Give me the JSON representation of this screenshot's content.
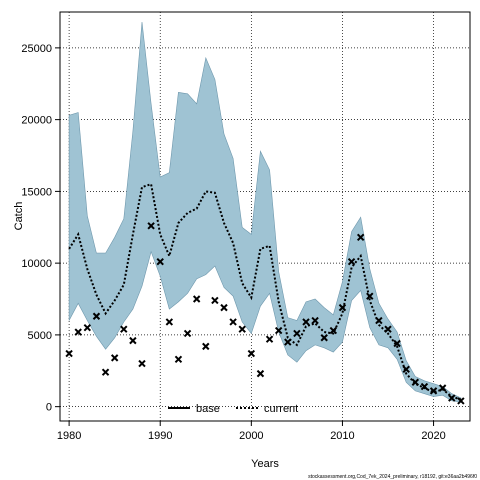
{
  "chart_data": {
    "type": "line",
    "xlabel": "Years",
    "ylabel": "Catch",
    "xlim": [
      1979,
      2024
    ],
    "ylim": [
      -1000,
      27500
    ],
    "x_ticks": [
      1980,
      1990,
      2000,
      2010,
      2020
    ],
    "y_ticks": [
      0,
      5000,
      10000,
      15000,
      20000,
      25000
    ],
    "grid": true,
    "legend_position": "bottom",
    "colors": {
      "band": "#9fc3d3",
      "band_edge": "#6f98ad",
      "line": "#000000",
      "points": "#000000"
    },
    "legend": [
      {
        "label": "base",
        "style": "solid"
      },
      {
        "label": "current",
        "style": "dotted"
      }
    ],
    "x": [
      1980,
      1981,
      1982,
      1983,
      1984,
      1985,
      1986,
      1987,
      1988,
      1989,
      1990,
      1991,
      1992,
      1993,
      1994,
      1995,
      1996,
      1997,
      1998,
      1999,
      2000,
      2001,
      2002,
      2003,
      2004,
      2005,
      2006,
      2007,
      2008,
      2009,
      2010,
      2011,
      2012,
      2013,
      2014,
      2015,
      2016,
      2017,
      2018,
      2019,
      2020,
      2021,
      2022,
      2023
    ],
    "observed": [
      3700,
      5200,
      5500,
      6300,
      2400,
      3400,
      5400,
      4600,
      3000,
      12600,
      10100,
      5900,
      3300,
      5100,
      7500,
      4200,
      7400,
      6900,
      5900,
      5400,
      3700,
      2300,
      4700,
      5300,
      4500,
      5100,
      5900,
      6000,
      4800,
      5300,
      6900,
      10100,
      11800,
      7700,
      6000,
      5400,
      4400,
      2600,
      1700,
      1400,
      1100,
      1300,
      600,
      400
    ],
    "series": [
      {
        "name": "current",
        "values": [
          11000,
          12000,
          9600,
          7800,
          6500,
          7400,
          8500,
          12000,
          15300,
          15500,
          12000,
          10500,
          12800,
          13500,
          13800,
          15000,
          14900,
          12800,
          11400,
          8600,
          7600,
          11000,
          11200,
          7300,
          4800,
          4300,
          5600,
          5800,
          5200,
          5100,
          6500,
          9700,
          10500,
          7400,
          5700,
          5100,
          4200,
          2300,
          1600,
          1300,
          1000,
          1200,
          700,
          500
        ]
      }
    ],
    "band": {
      "upper": [
        20300,
        20500,
        13300,
        10700,
        10700,
        11800,
        13100,
        19200,
        26800,
        21100,
        16000,
        16300,
        21900,
        21800,
        21100,
        24300,
        22800,
        19000,
        17300,
        12500,
        12000,
        17800,
        16500,
        9400,
        6200,
        6000,
        7300,
        7500,
        6900,
        6400,
        8700,
        12200,
        13200,
        9600,
        7200,
        6100,
        5200,
        3200,
        2100,
        1800,
        1600,
        1400,
        900,
        600
      ],
      "lower": [
        6000,
        7200,
        6000,
        4900,
        4000,
        4800,
        5900,
        6800,
        8400,
        10800,
        9100,
        6800,
        7300,
        7900,
        8900,
        9200,
        9800,
        8300,
        7700,
        5900,
        5100,
        7000,
        7900,
        5200,
        3600,
        3100,
        3900,
        4300,
        4100,
        3800,
        4500,
        7400,
        8100,
        5500,
        4300,
        4100,
        3300,
        1700,
        1100,
        900,
        700,
        800,
        400,
        300
      ]
    },
    "footer_text": "stockassessment.org,Cod_7ek_2024_preliminary, r18192, git:e36aa2b496f0"
  }
}
